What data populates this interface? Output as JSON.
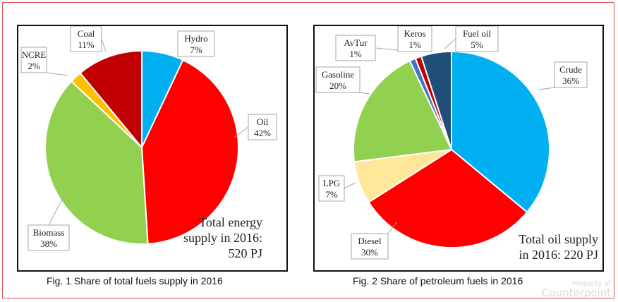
{
  "chart_data": [
    {
      "type": "pie",
      "title": "",
      "caption": "Fig. 1 Share of total fuels supply in 2016",
      "total_text": [
        "Total energy",
        "supply in 2016:",
        "520 PJ"
      ],
      "slices": [
        {
          "name": "Hydro",
          "value": 7,
          "label": "7%",
          "color": "#00b0f0"
        },
        {
          "name": "Oil",
          "value": 42,
          "label": "42%",
          "color": "#ff0000"
        },
        {
          "name": "Biomass",
          "value": 38,
          "label": "38%",
          "color": "#92d050"
        },
        {
          "name": "NCRE",
          "value": 2,
          "label": "2%",
          "color": "#ffc000"
        },
        {
          "name": "Coal",
          "value": 11,
          "label": "11%",
          "color": "#c00000"
        }
      ]
    },
    {
      "type": "pie",
      "title": "",
      "caption": "Fig. 2 Share of petroleum fuels in 2016",
      "total_text": [
        "Total oil supply",
        "in 2016: 220 PJ"
      ],
      "slices": [
        {
          "name": "Crude",
          "value": 36,
          "label": "36%",
          "color": "#00b0f0"
        },
        {
          "name": "Diesel",
          "value": 30,
          "label": "30%",
          "color": "#ff0000"
        },
        {
          "name": "LPG",
          "value": 7,
          "label": "7%",
          "color": "#ffe699"
        },
        {
          "name": "Gasoline",
          "value": 20,
          "label": "20%",
          "color": "#92d050"
        },
        {
          "name": "AvTur",
          "value": 1,
          "label": "1%",
          "color": "#4472c4"
        },
        {
          "name": "Keros",
          "value": 1,
          "label": "1%",
          "color": "#c00000"
        },
        {
          "name": "Fuel oil",
          "value": 5,
          "label": "5%",
          "color": "#1f4e79"
        }
      ]
    }
  ],
  "watermark": {
    "line1": "Property of",
    "line2": "Counterpoint"
  }
}
